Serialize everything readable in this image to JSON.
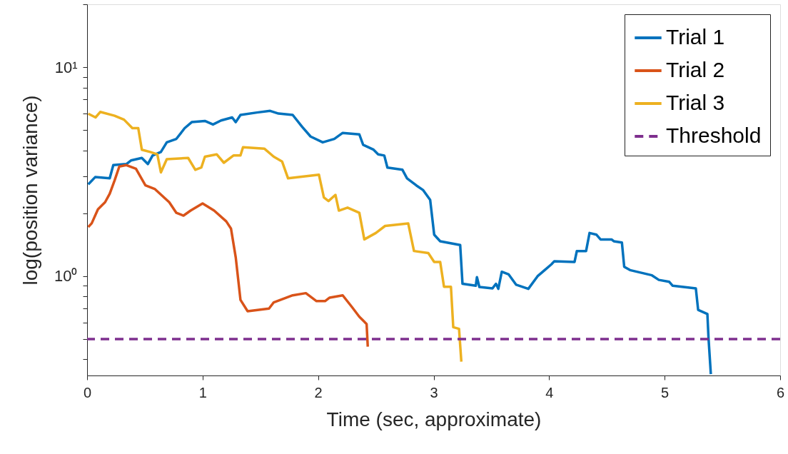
{
  "chart_data": {
    "type": "line",
    "xlabel": "Time (sec, approximate)",
    "ylabel": "log(position variance)",
    "log": true,
    "grid": false,
    "legend": "top right",
    "line_style": "solid",
    "xlim": [
      0,
      6
    ],
    "xticks": [
      0,
      1,
      2,
      3,
      4,
      5,
      6
    ],
    "ylim": [
      0.335,
      20
    ],
    "yticks": [
      {
        "value": 0.4,
        "label": null
      },
      {
        "value": 0.5,
        "label": null
      },
      {
        "value": 0.6,
        "label": null
      },
      {
        "value": 0.7,
        "label": null
      },
      {
        "value": 0.8,
        "label": null
      },
      {
        "value": 0.9,
        "label": null
      },
      {
        "value": 1,
        "label": "10⁰"
      },
      {
        "value": 2,
        "label": null
      },
      {
        "value": 3,
        "label": null
      },
      {
        "value": 4,
        "label": null
      },
      {
        "value": 5,
        "label": null
      },
      {
        "value": 6,
        "label": null
      },
      {
        "value": 7,
        "label": null
      },
      {
        "value": 8,
        "label": null
      },
      {
        "value": 9,
        "label": null
      },
      {
        "value": 10,
        "label": "10¹"
      },
      {
        "value": 20,
        "label": null
      }
    ],
    "series": [
      {
        "name": "Trial 1",
        "color": "#0072bd",
        "x": [
          0.01,
          0.07,
          0.196,
          0.227,
          0.34,
          0.38,
          0.474,
          0.526,
          0.567,
          0.639,
          0.69,
          0.773,
          0.845,
          0.906,
          1.02,
          1.09,
          1.16,
          1.256,
          1.287,
          1.328,
          1.47,
          1.585,
          1.657,
          1.78,
          1.863,
          1.935,
          2.04,
          2.14,
          2.213,
          2.357,
          2.39,
          2.48,
          2.52,
          2.573,
          2.6,
          2.73,
          2.77,
          2.85,
          2.91,
          2.97,
          3.005,
          3.057,
          3.23,
          3.25,
          3.365,
          3.375,
          3.396,
          3.51,
          3.54,
          3.56,
          3.59,
          3.65,
          3.715,
          3.82,
          3.9,
          4.02,
          4.045,
          4.22,
          4.24,
          4.32,
          4.35,
          4.41,
          4.445,
          4.54,
          4.56,
          4.63,
          4.65,
          4.7,
          4.89,
          4.95,
          5.04,
          5.07,
          5.27,
          5.29,
          5.37,
          5.38,
          5.4
        ],
        "values": [
          2.75,
          2.98,
          2.94,
          3.4,
          3.44,
          3.58,
          3.68,
          3.44,
          3.78,
          3.93,
          4.37,
          4.54,
          5.11,
          5.46,
          5.53,
          5.32,
          5.56,
          5.75,
          5.46,
          5.91,
          6.07,
          6.18,
          6.0,
          5.91,
          5.18,
          4.66,
          4.37,
          4.54,
          4.85,
          4.77,
          4.25,
          4.03,
          3.83,
          3.78,
          3.31,
          3.23,
          2.94,
          2.72,
          2.58,
          2.32,
          1.58,
          1.47,
          1.41,
          0.92,
          0.9,
          0.99,
          0.888,
          0.875,
          0.92,
          0.87,
          1.05,
          1.02,
          0.91,
          0.87,
          1.0,
          1.14,
          1.18,
          1.17,
          1.32,
          1.32,
          1.61,
          1.58,
          1.5,
          1.5,
          1.47,
          1.45,
          1.11,
          1.07,
          1.01,
          0.96,
          0.94,
          0.9,
          0.875,
          0.69,
          0.66,
          0.505,
          0.34
        ]
      },
      {
        "name": "Trial 2",
        "color": "#d95319",
        "x": [
          0.01,
          0.04,
          0.094,
          0.156,
          0.196,
          0.238,
          0.279,
          0.34,
          0.423,
          0.505,
          0.588,
          0.711,
          0.773,
          0.835,
          0.896,
          1.0,
          1.1,
          1.205,
          1.246,
          1.287,
          1.328,
          1.39,
          1.575,
          1.616,
          1.78,
          1.894,
          1.986,
          2.06,
          2.1,
          2.213,
          2.295,
          2.357,
          2.42,
          2.43
        ],
        "values": [
          1.72,
          1.79,
          2.09,
          2.26,
          2.48,
          2.87,
          3.35,
          3.4,
          3.27,
          2.72,
          2.61,
          2.26,
          2.01,
          1.95,
          2.06,
          2.23,
          2.06,
          1.83,
          1.69,
          1.23,
          0.77,
          0.68,
          0.7,
          0.75,
          0.81,
          0.83,
          0.76,
          0.76,
          0.79,
          0.81,
          0.71,
          0.64,
          0.59,
          0.46
        ]
      },
      {
        "name": "Trial 3",
        "color": "#edb120",
        "x": [
          0.01,
          0.073,
          0.114,
          0.238,
          0.32,
          0.392,
          0.443,
          0.474,
          0.546,
          0.608,
          0.639,
          0.69,
          0.875,
          0.937,
          0.989,
          1.02,
          1.122,
          1.184,
          1.267,
          1.328,
          1.35,
          1.534,
          1.616,
          1.688,
          1.74,
          2.007,
          2.05,
          2.09,
          2.15,
          2.18,
          2.255,
          2.357,
          2.4,
          2.5,
          2.58,
          2.78,
          2.83,
          2.954,
          3.005,
          3.057,
          3.09,
          3.15,
          3.17,
          3.22,
          3.24
        ],
        "values": [
          5.99,
          5.75,
          6.11,
          5.86,
          5.61,
          5.11,
          5.11,
          4.03,
          3.93,
          3.83,
          3.14,
          3.63,
          3.68,
          3.23,
          3.31,
          3.73,
          3.83,
          3.49,
          3.78,
          3.78,
          4.14,
          4.08,
          3.73,
          3.54,
          2.94,
          3.06,
          2.38,
          2.29,
          2.45,
          2.06,
          2.13,
          2.01,
          1.5,
          1.61,
          1.74,
          1.79,
          1.32,
          1.29,
          1.17,
          1.17,
          0.89,
          0.89,
          0.57,
          0.56,
          0.39
        ]
      }
    ],
    "ref_lines": [
      {
        "axis": "y",
        "value": 0.5,
        "label": "Threshold",
        "color": "#7e2f8e",
        "line_style": "dashed"
      }
    ]
  }
}
